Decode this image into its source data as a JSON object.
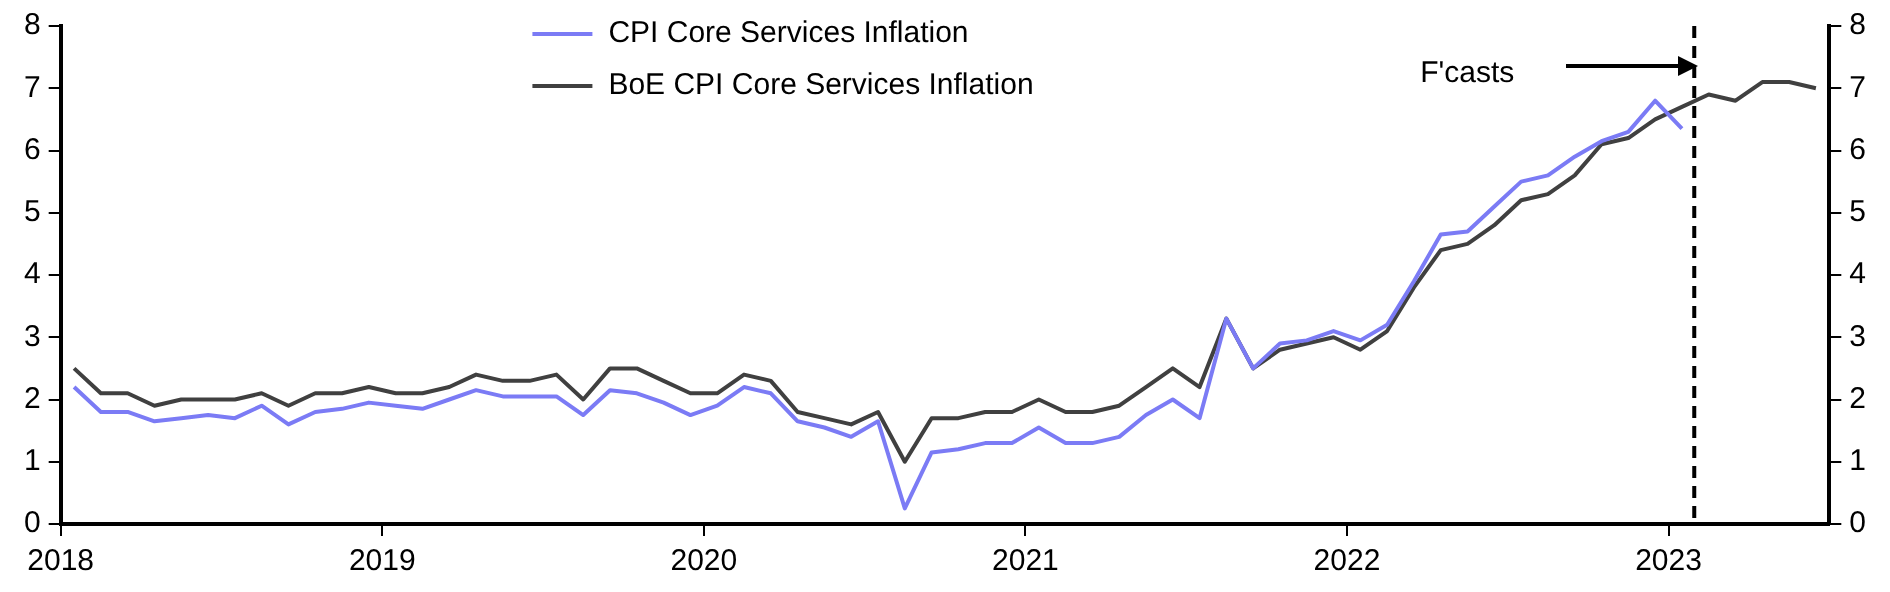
{
  "chart_data": {
    "type": "line",
    "x": [
      2018.0417,
      2018.125,
      2018.2083,
      2018.2917,
      2018.375,
      2018.4583,
      2018.5417,
      2018.625,
      2018.7083,
      2018.7917,
      2018.875,
      2018.9583,
      2019.0417,
      2019.125,
      2019.2083,
      2019.2917,
      2019.375,
      2019.4583,
      2019.5417,
      2019.625,
      2019.7083,
      2019.7917,
      2019.875,
      2019.9583,
      2020.0417,
      2020.125,
      2020.2083,
      2020.2917,
      2020.375,
      2020.4583,
      2020.5417,
      2020.625,
      2020.7083,
      2020.7917,
      2020.875,
      2020.9583,
      2021.0417,
      2021.125,
      2021.2083,
      2021.2917,
      2021.375,
      2021.4583,
      2021.5417,
      2021.625,
      2021.7083,
      2021.7917,
      2021.875,
      2021.9583,
      2022.0417,
      2022.125,
      2022.2083,
      2022.2917,
      2022.375,
      2022.4583,
      2022.5417,
      2022.625,
      2022.7083,
      2022.7917,
      2022.875,
      2022.9583,
      2023.0417,
      2023.125,
      2023.2083,
      2023.2917,
      2023.375,
      2023.4583
    ],
    "series": [
      {
        "name": "CPI Core Services Inflation",
        "color": "#7b7bf5",
        "values": [
          2.2,
          1.8,
          1.8,
          1.65,
          1.7,
          1.75,
          1.7,
          1.9,
          1.6,
          1.8,
          1.85,
          1.95,
          1.9,
          1.85,
          2.0,
          2.15,
          2.05,
          2.05,
          2.05,
          1.75,
          2.15,
          2.1,
          1.95,
          1.75,
          1.9,
          2.2,
          2.1,
          1.65,
          1.55,
          1.4,
          1.65,
          0.25,
          1.15,
          1.2,
          1.3,
          1.3,
          1.55,
          1.3,
          1.3,
          1.4,
          1.75,
          2.0,
          1.7,
          3.3,
          2.5,
          2.9,
          2.95,
          3.1,
          2.95,
          3.2,
          3.9,
          4.65,
          4.7,
          5.1,
          5.5,
          5.6,
          5.9,
          6.15,
          6.3,
          6.8,
          6.35,
          null,
          null,
          null,
          null,
          null
        ]
      },
      {
        "name": "BoE CPI Core Services Inflation",
        "color": "#404040",
        "values": [
          2.5,
          2.1,
          2.1,
          1.9,
          2.0,
          2.0,
          2.0,
          2.1,
          1.9,
          2.1,
          2.1,
          2.2,
          2.1,
          2.1,
          2.2,
          2.4,
          2.3,
          2.3,
          2.4,
          2.0,
          2.5,
          2.5,
          2.3,
          2.1,
          2.1,
          2.4,
          2.3,
          1.8,
          1.7,
          1.6,
          1.8,
          1.0,
          1.7,
          1.7,
          1.8,
          1.8,
          2.0,
          1.8,
          1.8,
          1.9,
          2.2,
          2.5,
          2.2,
          3.3,
          2.5,
          2.8,
          2.9,
          3.0,
          2.8,
          3.1,
          3.8,
          4.4,
          4.5,
          4.8,
          5.2,
          5.3,
          5.6,
          6.1,
          6.2,
          6.5,
          6.7,
          6.9,
          6.8,
          7.1,
          7.1,
          7.0
        ]
      }
    ],
    "xlim": [
      2018,
      2023.5
    ],
    "xticks": [
      2018,
      2019,
      2020,
      2021,
      2022,
      2023
    ],
    "ylim": [
      0,
      8
    ],
    "yticks": [
      0,
      1,
      2,
      3,
      4,
      5,
      6,
      7,
      8
    ],
    "y2lim": [
      0,
      8
    ],
    "y2ticks": [
      0,
      1,
      2,
      3,
      4,
      5,
      6,
      7,
      8
    ],
    "ref_lines": [
      {
        "axis": "x",
        "value": 2023.08,
        "color": "#000000",
        "line_style": "dashed"
      }
    ],
    "annotations": [
      "F'casts"
    ],
    "grid": false,
    "legend": "top",
    "marker": "none",
    "line_style": "solid"
  }
}
